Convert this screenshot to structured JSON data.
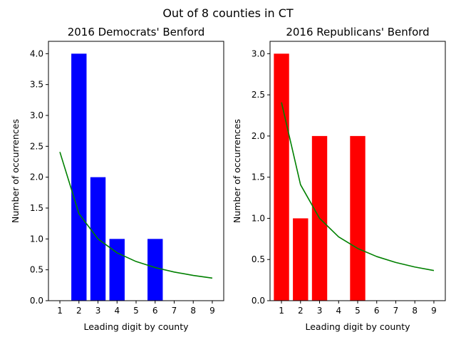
{
  "suptitle": "Out of 8 counties in CT",
  "chart_data": [
    {
      "type": "bar",
      "title": "2016 Democrats' Benford",
      "xlabel": "Leading digit by county",
      "ylabel": "Number of occurrences",
      "categories": [
        1,
        2,
        3,
        4,
        5,
        6,
        7,
        8,
        9
      ],
      "values": [
        0,
        4,
        2,
        1,
        0,
        1,
        0,
        0,
        0
      ],
      "bar_color": "#0000ff",
      "expected_line": {
        "color": "#008000",
        "x": [
          1,
          2,
          3,
          4,
          5,
          6,
          7,
          8,
          9
        ],
        "y": [
          2.408,
          1.409,
          1.0,
          0.775,
          0.634,
          0.536,
          0.464,
          0.409,
          0.366
        ]
      },
      "xlim": [
        0.4,
        9.6
      ],
      "ylim": [
        0,
        4.2
      ],
      "yticks": [
        0.0,
        0.5,
        1.0,
        1.5,
        2.0,
        2.5,
        3.0,
        3.5,
        4.0
      ],
      "ytick_labels": [
        "0.0",
        "0.5",
        "1.0",
        "1.5",
        "2.0",
        "2.5",
        "3.0",
        "3.5",
        "4.0"
      ],
      "xticks": [
        1,
        2,
        3,
        4,
        5,
        6,
        7,
        8,
        9
      ],
      "xtick_labels": [
        "1",
        "2",
        "3",
        "4",
        "5",
        "6",
        "7",
        "8",
        "9"
      ],
      "grid": false
    },
    {
      "type": "bar",
      "title": "2016 Republicans' Benford",
      "xlabel": "Leading digit by county",
      "ylabel": "Number of occurrences",
      "categories": [
        1,
        2,
        3,
        4,
        5,
        6,
        7,
        8,
        9
      ],
      "values": [
        3,
        1,
        2,
        0,
        2,
        0,
        0,
        0,
        0
      ],
      "bar_color": "#ff0000",
      "expected_line": {
        "color": "#008000",
        "x": [
          1,
          2,
          3,
          4,
          5,
          6,
          7,
          8,
          9
        ],
        "y": [
          2.408,
          1.409,
          1.0,
          0.775,
          0.634,
          0.536,
          0.464,
          0.409,
          0.366
        ]
      },
      "xlim": [
        0.4,
        9.6
      ],
      "ylim": [
        0,
        3.15
      ],
      "yticks": [
        0.0,
        0.5,
        1.0,
        1.5,
        2.0,
        2.5,
        3.0
      ],
      "ytick_labels": [
        "0.0",
        "0.5",
        "1.0",
        "1.5",
        "2.0",
        "2.5",
        "3.0"
      ],
      "xticks": [
        1,
        2,
        3,
        4,
        5,
        6,
        7,
        8,
        9
      ],
      "xtick_labels": [
        "1",
        "2",
        "3",
        "4",
        "5",
        "6",
        "7",
        "8",
        "9"
      ],
      "grid": false
    }
  ]
}
